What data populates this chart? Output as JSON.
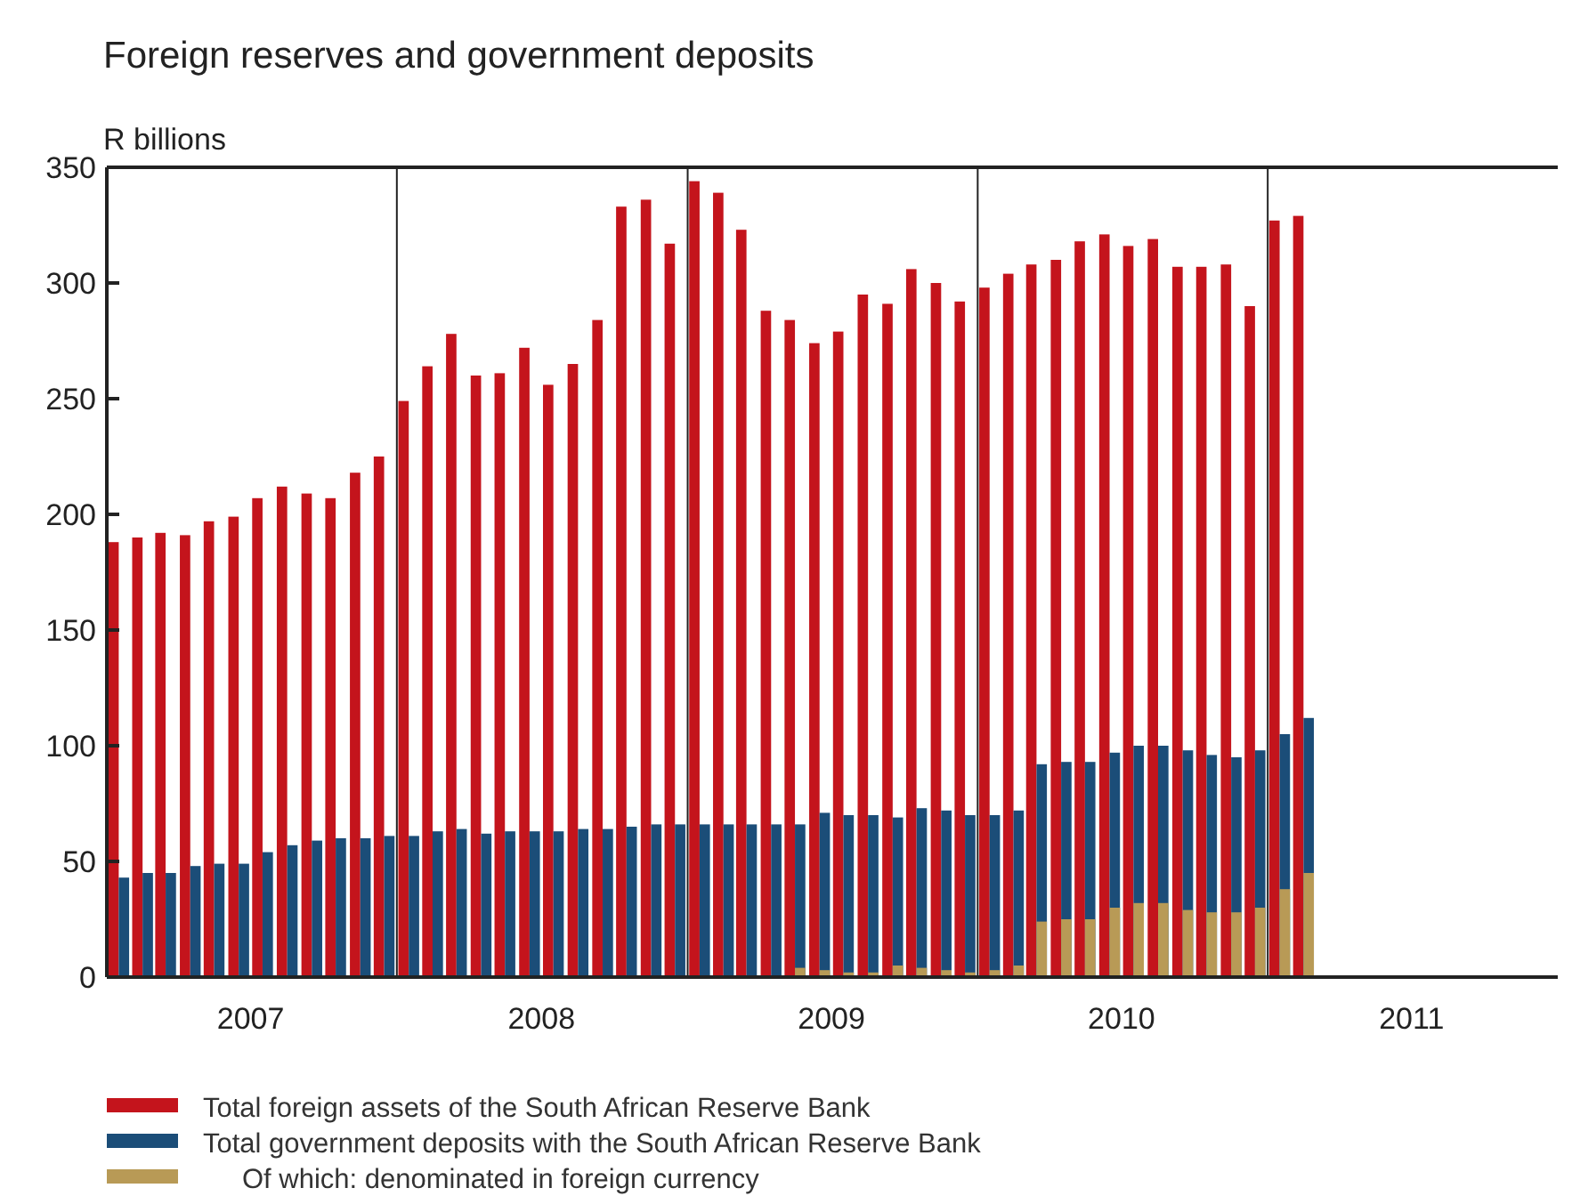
{
  "chart_data": {
    "type": "bar",
    "title": "Foreign reserves and government deposits",
    "ylabel": "R billions",
    "x": [
      "2007-01-16",
      "2007-02-15",
      "2007-03-16",
      "2007-04-16",
      "2007-05-16",
      "2007-06-16",
      "2007-07-16",
      "2007-08-16",
      "2007-09-16",
      "2007-10-16",
      "2007-11-16",
      "2007-12-16",
      "2008-01-16",
      "2008-02-15",
      "2008-03-16",
      "2008-04-16",
      "2008-05-16",
      "2008-06-16",
      "2008-07-16",
      "2008-08-16",
      "2008-09-16",
      "2008-10-16",
      "2008-11-16",
      "2008-12-16",
      "2009-01-16",
      "2009-02-15",
      "2009-03-16",
      "2009-04-16",
      "2009-05-16",
      "2009-06-16",
      "2009-07-16",
      "2009-08-16",
      "2009-09-16",
      "2009-10-16",
      "2009-11-16",
      "2009-12-16",
      "2010-01-16",
      "2010-02-15",
      "2010-03-16",
      "2010-04-16",
      "2010-05-16",
      "2010-06-16",
      "2010-07-16",
      "2010-08-16",
      "2010-09-16",
      "2010-10-16",
      "2010-11-16",
      "2010-12-16",
      "2011-01-16",
      "2011-02-15"
    ],
    "series": [
      {
        "name": "Total foreign assets of the South African Reserve Bank",
        "color": "#c4141c",
        "values": [
          188,
          190,
          192,
          191,
          197,
          199,
          207,
          212,
          209,
          207,
          218,
          225,
          249,
          264,
          278,
          260,
          261,
          272,
          256,
          265,
          284,
          333,
          336,
          317,
          344,
          339,
          323,
          288,
          284,
          274,
          279,
          295,
          291,
          306,
          300,
          292,
          298,
          304,
          308,
          310,
          318,
          321,
          316,
          319,
          307,
          307,
          308,
          290,
          327,
          329
        ]
      },
      {
        "name": "Total government deposits with the South African Reserve Bank",
        "color": "#1b4d78",
        "values": [
          43,
          45,
          45,
          48,
          49,
          49,
          54,
          57,
          59,
          60,
          60,
          61,
          61,
          63,
          64,
          62,
          63,
          63,
          63,
          64,
          64,
          65,
          66,
          66,
          66,
          66,
          66,
          66,
          66,
          71,
          70,
          70,
          69,
          73,
          72,
          70,
          70,
          72,
          92,
          93,
          93,
          97,
          100,
          100,
          98,
          96,
          95,
          98,
          105,
          112
        ]
      },
      {
        "name": "Of which: denominated in foreign currency",
        "color": "#b89a56",
        "values": [
          null,
          null,
          null,
          null,
          null,
          null,
          null,
          null,
          null,
          null,
          null,
          null,
          null,
          null,
          null,
          null,
          null,
          null,
          null,
          null,
          null,
          null,
          null,
          null,
          null,
          null,
          null,
          null,
          4,
          3,
          2,
          2,
          5,
          4,
          3,
          2,
          3,
          5,
          24,
          25,
          25,
          30,
          32,
          32,
          29,
          28,
          28,
          30,
          38,
          45
        ]
      }
    ],
    "xlim": [
      "2007-01",
      "2012-01"
    ],
    "xticks": [
      {
        "value": "2007-07",
        "label": "2007"
      },
      {
        "value": "2008-07",
        "label": "2008"
      },
      {
        "value": "2009-07",
        "label": "2009"
      },
      {
        "value": "2010-07",
        "label": "2010"
      },
      {
        "value": "2011-07",
        "label": "2011"
      }
    ],
    "ylim": [
      0,
      350
    ],
    "yticks": [
      0,
      50,
      100,
      150,
      200,
      250,
      300,
      350
    ],
    "ref_lines": [
      {
        "axis": "x",
        "value": "2008-01"
      },
      {
        "axis": "x",
        "value": "2009-01"
      },
      {
        "axis": "x",
        "value": "2010-01"
      },
      {
        "axis": "x",
        "value": "2011-01"
      }
    ],
    "legend": "bottom",
    "grid": false
  }
}
